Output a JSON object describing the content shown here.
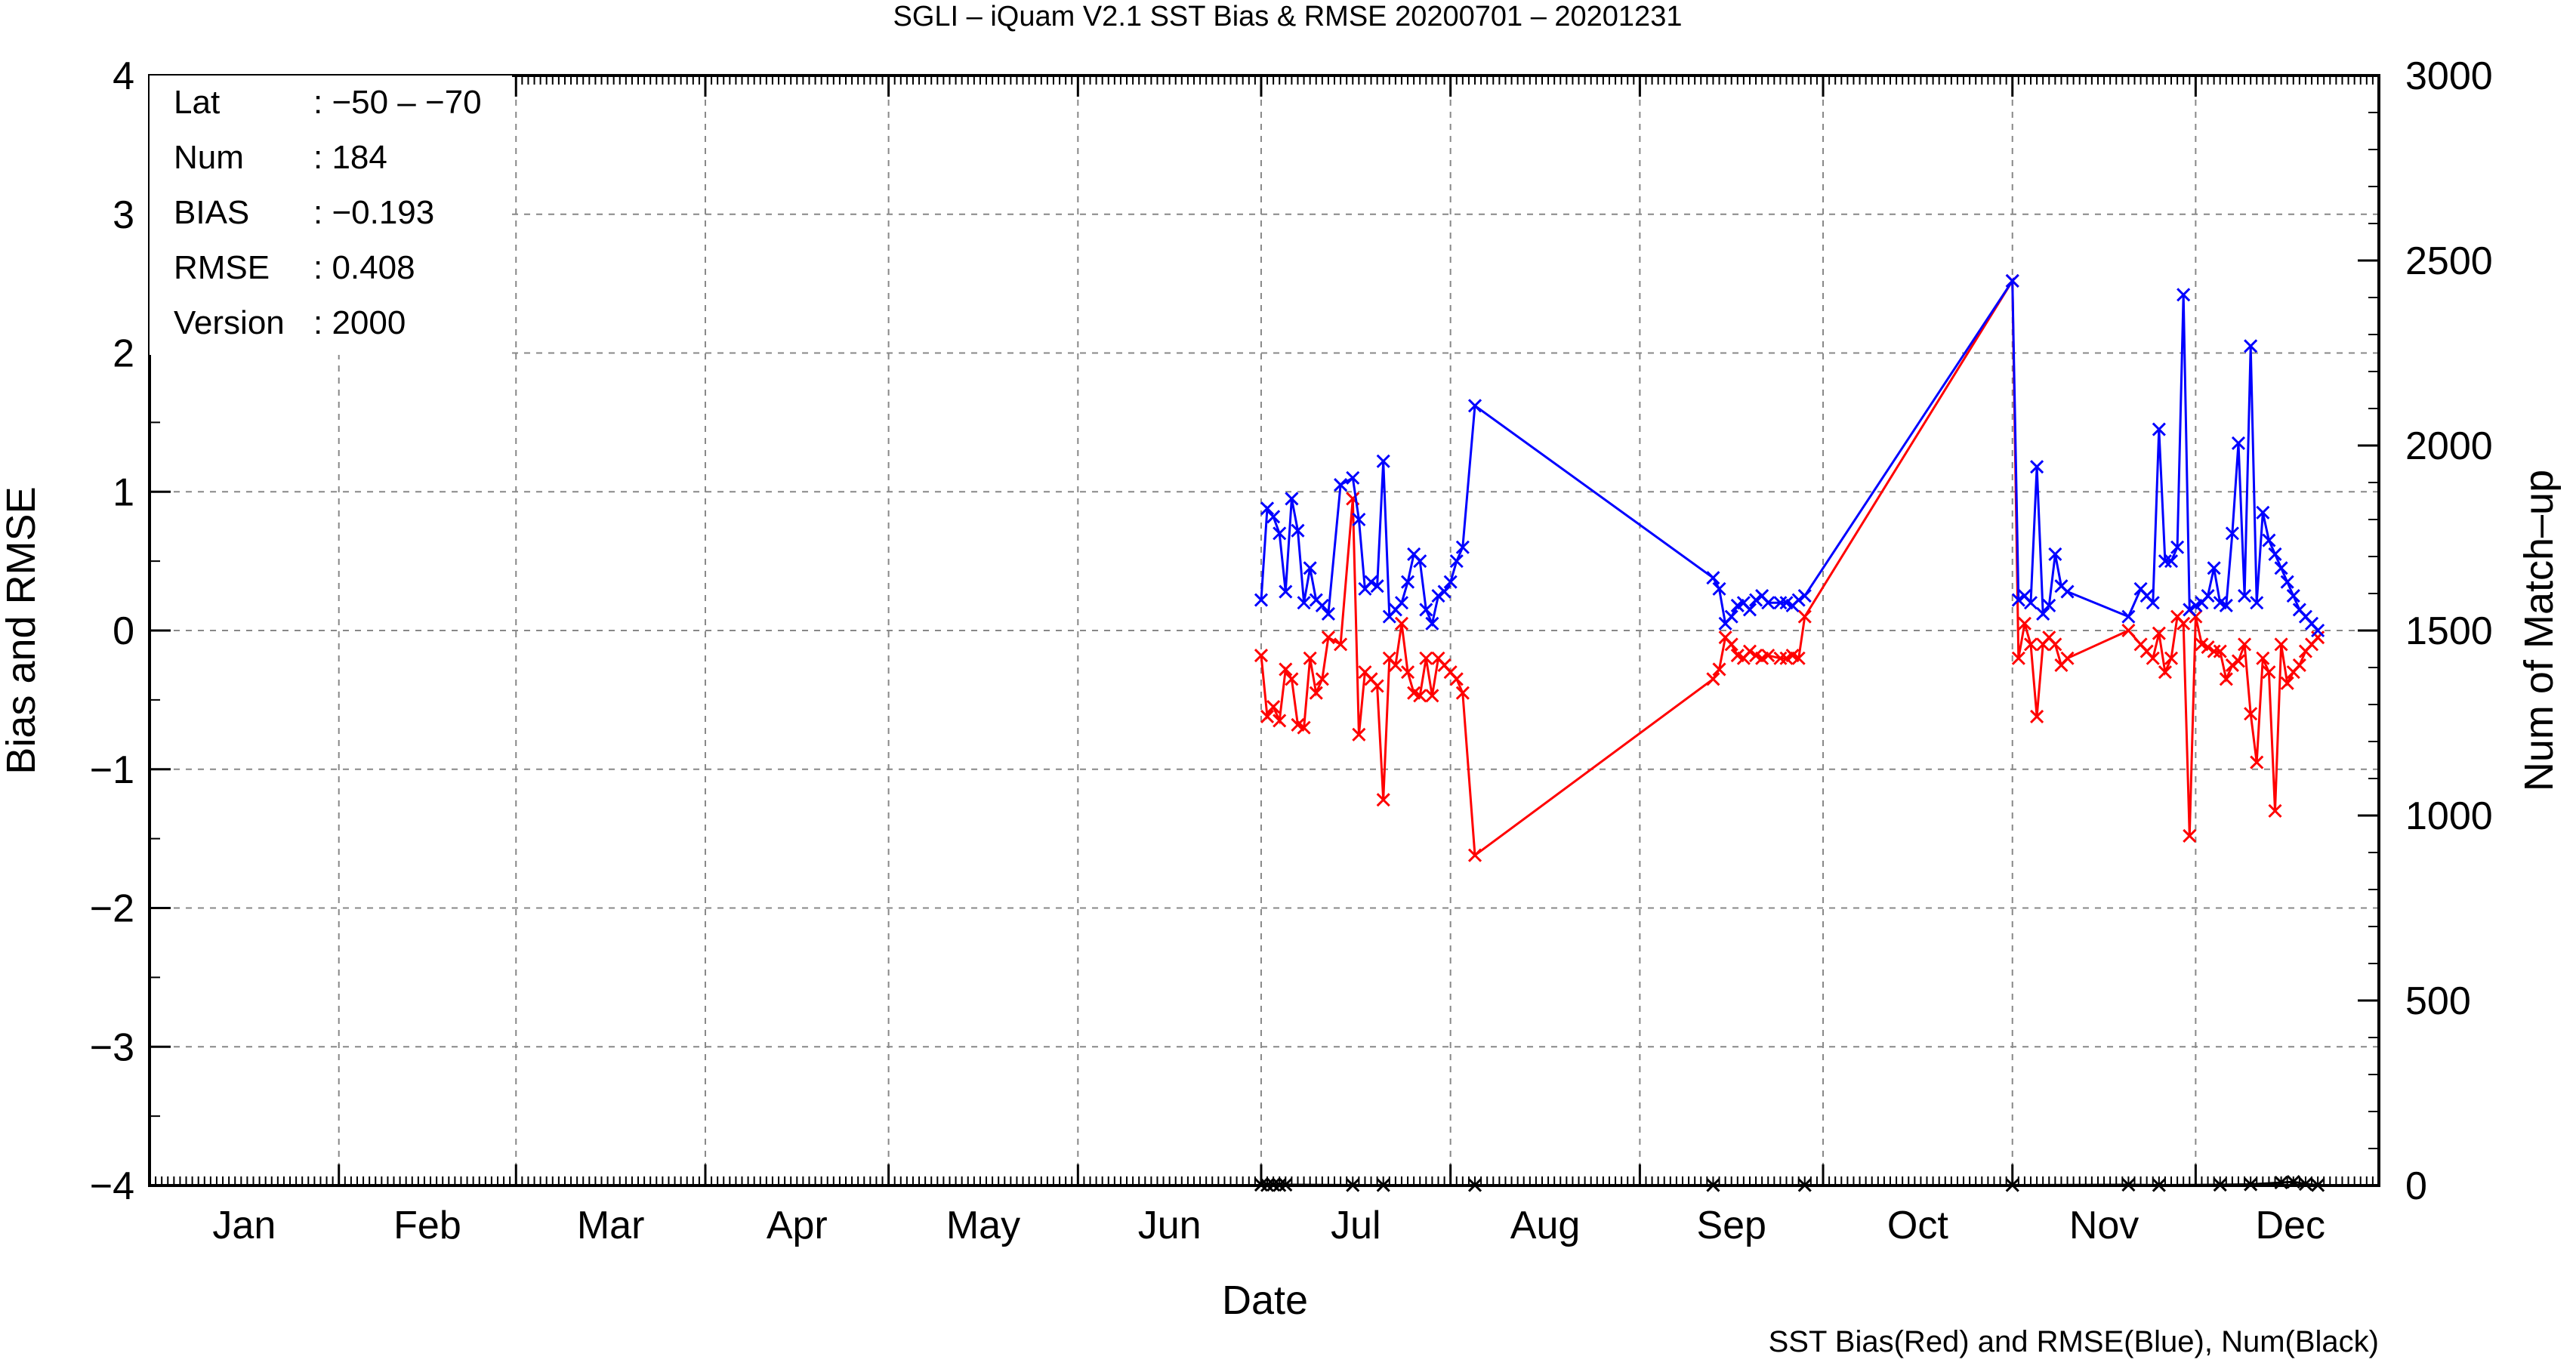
{
  "chart_data": {
    "type": "line",
    "title": "SGLI – iQuam V2.1 SST Bias & RMSE 20200701 – 20201231",
    "xlabel": "Date",
    "ylabel": "Bias and RMSE",
    "y2label": "Num of Match–up",
    "footer": "SST Bias(Red) and RMSE(Blue), Num(Black)",
    "x_ticks": [
      "Jan",
      "Feb",
      "Mar",
      "Apr",
      "May",
      "Jun",
      "Jul",
      "Aug",
      "Sep",
      "Oct",
      "Nov",
      "Dec"
    ],
    "ylim": [
      -4,
      4
    ],
    "y_ticks": [
      "−4",
      "−3",
      "−2",
      "−1",
      "0",
      "1",
      "2",
      "3",
      "4"
    ],
    "y2lim": [
      0,
      3000
    ],
    "y2_ticks": [
      "0",
      "500",
      "1000",
      "1500",
      "2000",
      "2500",
      "3000"
    ],
    "grid": true,
    "x_domain_day": [
      1,
      366
    ],
    "info": [
      {
        "key": "Lat",
        "value": ": −50 – −70"
      },
      {
        "key": "Num",
        "value": ": 184"
      },
      {
        "key": "BIAS",
        "value": ": −0.193"
      },
      {
        "key": "RMSE",
        "value": ": 0.408"
      },
      {
        "key": "Version",
        "value": ": 2000"
      }
    ],
    "series": [
      {
        "name": "SST Bias",
        "color": "#ff0000",
        "points": [
          [
            183,
            -0.18
          ],
          [
            184,
            -0.62
          ],
          [
            185,
            -0.55
          ],
          [
            186,
            -0.65
          ],
          [
            187,
            -0.28
          ],
          [
            188,
            -0.35
          ],
          [
            189,
            -0.68
          ],
          [
            190,
            -0.7
          ],
          [
            191,
            -0.2
          ],
          [
            192,
            -0.45
          ],
          [
            193,
            -0.35
          ],
          [
            194,
            -0.05
          ],
          [
            196,
            -0.1
          ],
          [
            198,
            0.95
          ],
          [
            199,
            -0.75
          ],
          [
            200,
            -0.3
          ],
          [
            201,
            -0.35
          ],
          [
            202,
            -0.4
          ],
          [
            203,
            -1.22
          ],
          [
            204,
            -0.2
          ],
          [
            205,
            -0.25
          ],
          [
            206,
            0.05
          ],
          [
            207,
            -0.3
          ],
          [
            208,
            -0.45
          ],
          [
            209,
            -0.47
          ],
          [
            210,
            -0.2
          ],
          [
            211,
            -0.47
          ],
          [
            212,
            -0.2
          ],
          [
            213,
            -0.25
          ],
          [
            214,
            -0.3
          ],
          [
            215,
            -0.35
          ],
          [
            216,
            -0.45
          ],
          [
            218,
            -1.62
          ],
          [
            257,
            -0.35
          ],
          [
            258,
            -0.28
          ],
          [
            259,
            -0.05
          ],
          [
            260,
            -0.1
          ],
          [
            261,
            -0.18
          ],
          [
            262,
            -0.2
          ],
          [
            263,
            -0.15
          ],
          [
            264,
            -0.18
          ],
          [
            265,
            -0.2
          ],
          [
            266,
            -0.18
          ],
          [
            268,
            -0.2
          ],
          [
            269,
            -0.2
          ],
          [
            270,
            -0.18
          ],
          [
            271,
            -0.2
          ],
          [
            272,
            0.1
          ],
          [
            306,
            2.52
          ],
          [
            307,
            -0.2
          ],
          [
            308,
            0.05
          ],
          [
            309,
            -0.1
          ],
          [
            310,
            -0.62
          ],
          [
            311,
            -0.1
          ],
          [
            312,
            -0.05
          ],
          [
            313,
            -0.1
          ],
          [
            314,
            -0.25
          ],
          [
            315,
            -0.2
          ],
          [
            325,
            0.0
          ],
          [
            327,
            -0.1
          ],
          [
            328,
            -0.15
          ],
          [
            329,
            -0.2
          ],
          [
            330,
            -0.02
          ],
          [
            331,
            -0.3
          ],
          [
            332,
            -0.2
          ],
          [
            333,
            0.1
          ],
          [
            334,
            0.05
          ],
          [
            335,
            -1.48
          ],
          [
            336,
            0.1
          ],
          [
            337,
            -0.1
          ],
          [
            338,
            -0.12
          ],
          [
            339,
            -0.15
          ],
          [
            340,
            -0.15
          ],
          [
            341,
            -0.35
          ],
          [
            342,
            -0.25
          ],
          [
            343,
            -0.22
          ],
          [
            344,
            -0.1
          ],
          [
            345,
            -0.6
          ],
          [
            346,
            -0.95
          ],
          [
            347,
            -0.2
          ],
          [
            348,
            -0.3
          ],
          [
            349,
            -1.3
          ],
          [
            350,
            -0.1
          ],
          [
            351,
            -0.38
          ],
          [
            352,
            -0.3
          ],
          [
            353,
            -0.25
          ],
          [
            354,
            -0.15
          ],
          [
            355,
            -0.1
          ],
          [
            356,
            -0.05
          ]
        ]
      },
      {
        "name": "RMSE",
        "color": "#0000ff",
        "points": [
          [
            183,
            0.22
          ],
          [
            184,
            0.88
          ],
          [
            185,
            0.82
          ],
          [
            186,
            0.7
          ],
          [
            187,
            0.28
          ],
          [
            188,
            0.95
          ],
          [
            189,
            0.72
          ],
          [
            190,
            0.2
          ],
          [
            191,
            0.45
          ],
          [
            192,
            0.22
          ],
          [
            193,
            0.18
          ],
          [
            194,
            0.12
          ],
          [
            196,
            1.05
          ],
          [
            198,
            1.1
          ],
          [
            199,
            0.8
          ],
          [
            200,
            0.3
          ],
          [
            201,
            0.35
          ],
          [
            202,
            0.32
          ],
          [
            203,
            1.22
          ],
          [
            204,
            0.1
          ],
          [
            205,
            0.15
          ],
          [
            206,
            0.2
          ],
          [
            207,
            0.35
          ],
          [
            208,
            0.55
          ],
          [
            209,
            0.5
          ],
          [
            210,
            0.15
          ],
          [
            211,
            0.05
          ],
          [
            212,
            0.25
          ],
          [
            213,
            0.28
          ],
          [
            214,
            0.35
          ],
          [
            215,
            0.5
          ],
          [
            216,
            0.6
          ],
          [
            218,
            1.62
          ],
          [
            257,
            0.38
          ],
          [
            258,
            0.3
          ],
          [
            259,
            0.05
          ],
          [
            260,
            0.1
          ],
          [
            261,
            0.18
          ],
          [
            262,
            0.2
          ],
          [
            263,
            0.15
          ],
          [
            264,
            0.22
          ],
          [
            265,
            0.25
          ],
          [
            266,
            0.2
          ],
          [
            268,
            0.2
          ],
          [
            269,
            0.2
          ],
          [
            270,
            0.18
          ],
          [
            271,
            0.22
          ],
          [
            272,
            0.25
          ],
          [
            306,
            2.52
          ],
          [
            307,
            0.22
          ],
          [
            308,
            0.25
          ],
          [
            309,
            0.2
          ],
          [
            310,
            1.18
          ],
          [
            311,
            0.12
          ],
          [
            312,
            0.18
          ],
          [
            313,
            0.55
          ],
          [
            314,
            0.32
          ],
          [
            315,
            0.28
          ],
          [
            325,
            0.1
          ],
          [
            327,
            0.3
          ],
          [
            328,
            0.25
          ],
          [
            329,
            0.2
          ],
          [
            330,
            1.45
          ],
          [
            331,
            0.5
          ],
          [
            332,
            0.5
          ],
          [
            333,
            0.6
          ],
          [
            334,
            2.42
          ],
          [
            335,
            0.15
          ],
          [
            336,
            0.18
          ],
          [
            337,
            0.2
          ],
          [
            338,
            0.25
          ],
          [
            339,
            0.45
          ],
          [
            340,
            0.2
          ],
          [
            341,
            0.18
          ],
          [
            342,
            0.7
          ],
          [
            343,
            1.35
          ],
          [
            344,
            0.25
          ],
          [
            345,
            2.05
          ],
          [
            346,
            0.2
          ],
          [
            347,
            0.85
          ],
          [
            348,
            0.65
          ],
          [
            349,
            0.55
          ],
          [
            350,
            0.45
          ],
          [
            351,
            0.35
          ],
          [
            352,
            0.25
          ],
          [
            353,
            0.15
          ],
          [
            354,
            0.1
          ],
          [
            355,
            0.05
          ],
          [
            356,
            0.0
          ]
        ]
      },
      {
        "name": "Num",
        "color": "#000000",
        "axis": "y2",
        "points": [
          [
            183,
            2
          ],
          [
            184,
            1
          ],
          [
            185,
            2
          ],
          [
            186,
            1
          ],
          [
            187,
            2
          ],
          [
            198,
            1
          ],
          [
            203,
            1
          ],
          [
            218,
            1
          ],
          [
            257,
            1
          ],
          [
            272,
            1
          ],
          [
            306,
            1
          ],
          [
            325,
            2
          ],
          [
            330,
            1
          ],
          [
            340,
            2
          ],
          [
            345,
            3
          ],
          [
            350,
            8
          ],
          [
            352,
            10
          ],
          [
            354,
            4
          ],
          [
            356,
            1
          ]
        ]
      }
    ]
  }
}
